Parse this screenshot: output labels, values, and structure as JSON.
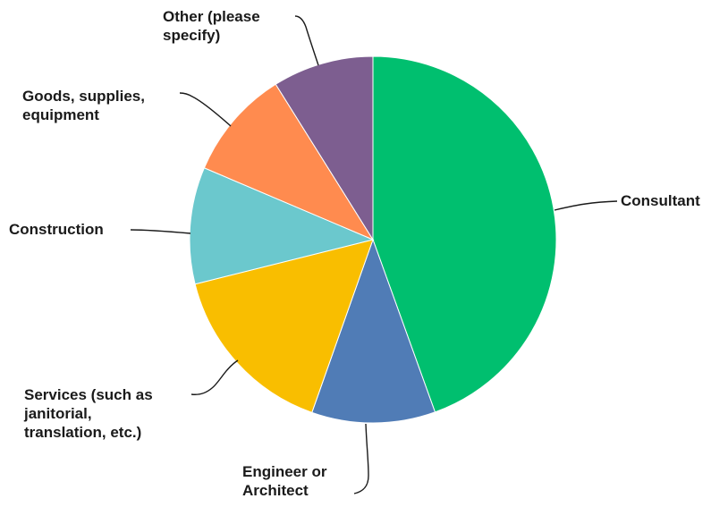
{
  "chart_data": {
    "type": "pie",
    "title": "",
    "start": "top",
    "direction": "clockwise",
    "legend": "none",
    "slices": [
      {
        "label": "Consultant",
        "value": 44.5,
        "color": "#00BF6F"
      },
      {
        "label": "Engineer or Architect",
        "value": 10.9,
        "color": "#507CB6"
      },
      {
        "label": "Services (such as janitorial, translation, etc.)",
        "value": 15.7,
        "color": "#F9BE00"
      },
      {
        "label": "Construction",
        "value": 10.3,
        "color": "#6BC8CD"
      },
      {
        "label": "Goods, supplies, equipment",
        "value": 9.7,
        "color": "#FF8B4F"
      },
      {
        "label": "Other (please specify)",
        "value": 8.9,
        "color": "#7D5E90"
      }
    ]
  }
}
